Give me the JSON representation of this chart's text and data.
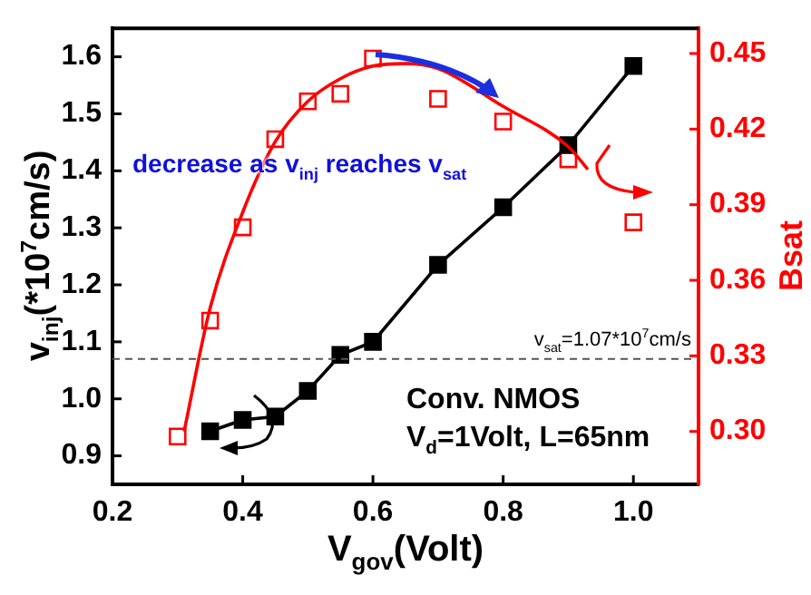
{
  "chart_data": {
    "type": "line",
    "xlabel": "V$_{gov}$(Volt)",
    "ylabel": "v$_{inj}$(*10$^{7}$cm/s)",
    "y2label": "Bsat",
    "xlim": [
      0.2,
      1.1
    ],
    "xticks": [
      0.2,
      0.4,
      0.6,
      0.8,
      {
        "value": 1,
        "label": "1.0"
      }
    ],
    "ylim": [
      0.85,
      1.65
    ],
    "yticks": [
      0.9,
      {
        "value": 1,
        "label": "1.0"
      },
      1.1,
      1.2,
      1.3,
      1.4,
      1.5,
      1.6
    ],
    "y2lim": [
      0.279,
      0.46
    ],
    "y2ticks": [
      {
        "value": 0.3,
        "label": "0.30"
      },
      0.33,
      0.36,
      0.39,
      0.42,
      0.45
    ],
    "series": [
      {
        "color": "#000000",
        "marker": "square",
        "x": [
          0.35,
          0.4,
          0.45,
          0.5,
          0.55,
          0.6,
          0.7,
          0.8,
          0.9,
          1.0
        ],
        "values": [
          0.943,
          0.963,
          0.969,
          1.014,
          1.077,
          1.1,
          1.235,
          1.336,
          1.445,
          1.584
        ]
      },
      {
        "type": "scatter",
        "axis": "y2",
        "color": "#ff0000",
        "marker": "square",
        "x": [
          0.3,
          0.35,
          0.4,
          0.45,
          0.5,
          0.55,
          0.6,
          0.7,
          0.8,
          0.9,
          1.0
        ],
        "values": [
          0.298,
          0.344,
          0.381,
          0.416,
          0.431,
          0.434,
          0.448,
          0.432,
          0.423,
          0.408,
          0.383
        ]
      },
      {
        "axis": "y2",
        "color": "#ff0000",
        "marker": "none",
        "x": [
          0.31,
          0.35,
          0.4,
          0.45,
          0.5,
          0.55,
          0.6,
          0.65,
          0.7,
          0.8,
          0.9,
          0.93
        ],
        "values": [
          0.3,
          0.349,
          0.387,
          0.415,
          0.431,
          0.44,
          0.445,
          0.446,
          0.444,
          0.429,
          0.413,
          0.404
        ]
      }
    ],
    "ref_lines": [
      {
        "axis": "y",
        "value": 1.07,
        "label": "v$_{sat}$=1.07*10$^{7}$cm/s",
        "color": "#555555",
        "line_style": "dashed"
      }
    ],
    "annotations": [
      "decrease as v$_{inj}$ reaches v$_{sat}$",
      "Conv. NMOS",
      "V$_{d}$=1Volt, L=65nm"
    ],
    "grid": false,
    "legend": false
  }
}
